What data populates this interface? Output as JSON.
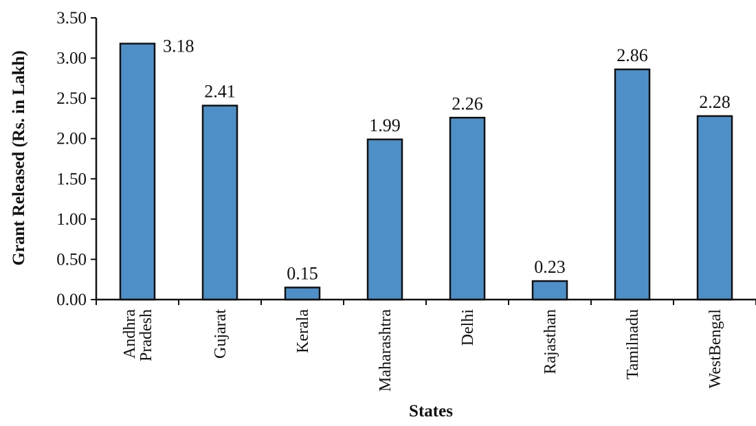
{
  "chart_data": {
    "type": "bar",
    "categories": [
      [
        "Andhra",
        "Pradesh"
      ],
      [
        "Gujarat"
      ],
      [
        "Kerala"
      ],
      [
        "Maharashtra"
      ],
      [
        "Delhi"
      ],
      [
        "Rajasthan"
      ],
      [
        "Tamilnadu"
      ],
      [
        "WestBengal"
      ]
    ],
    "values": [
      3.18,
      2.41,
      0.15,
      1.99,
      2.26,
      0.23,
      2.86,
      2.28
    ],
    "data_labels": [
      "3.18",
      "2.41",
      "0.15",
      "1.99",
      "2.26",
      "0.23",
      "2.86",
      "2.28"
    ],
    "y_ticks": [
      "0.00",
      "0.50",
      "1.00",
      "1.50",
      "2.00",
      "2.50",
      "3.00",
      "3.50"
    ],
    "ylim": [
      0,
      3.5
    ],
    "xlabel": "States",
    "ylabel": "Grant Released (Rs. in Lakh)",
    "bar_color": "#4f8fc8",
    "bar_edge_color": "#111111",
    "grid": false,
    "legend": false
  }
}
